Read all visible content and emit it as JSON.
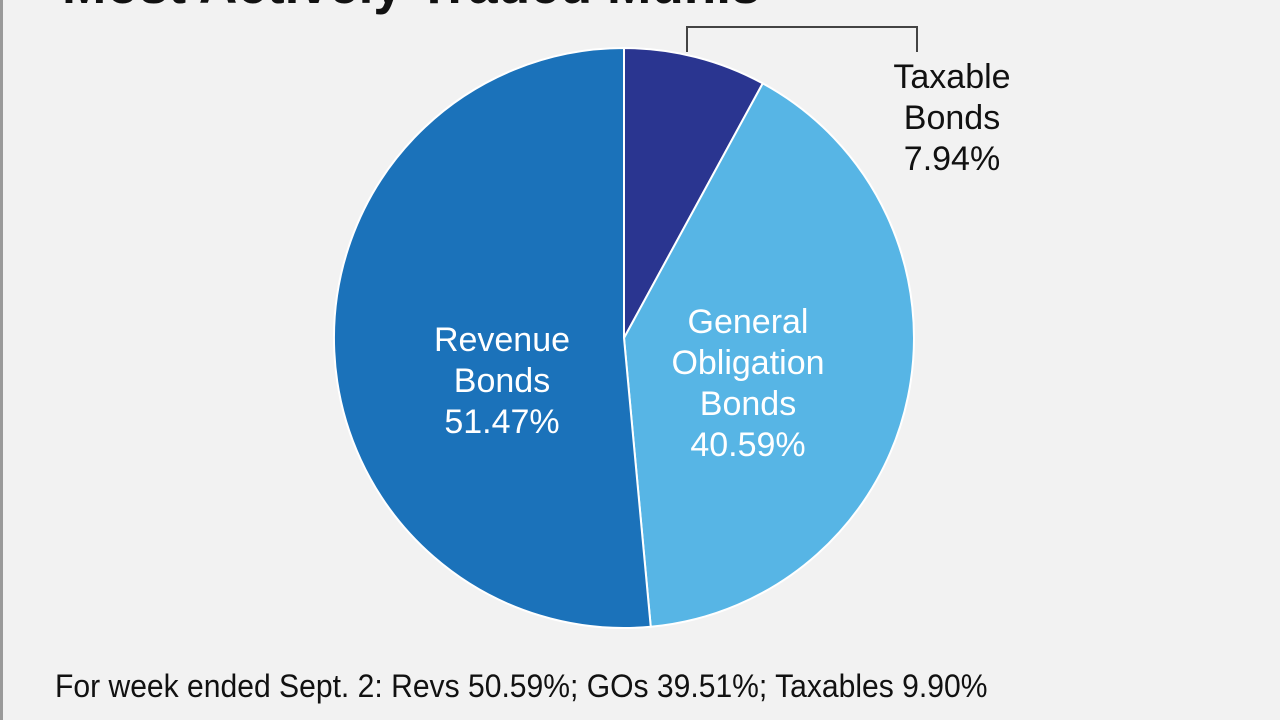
{
  "chart_data": {
    "type": "pie",
    "title": "Most Actively Traded Munis",
    "slices": [
      {
        "name": "Taxable Bonds",
        "label_lines": [
          "Taxable",
          "Bonds",
          "7.94%"
        ],
        "value": 7.94,
        "color": "#2a3590"
      },
      {
        "name": "General Obligation Bonds",
        "label_lines": [
          "General",
          "Obligation",
          "Bonds",
          "40.59%"
        ],
        "value": 40.59,
        "color": "#57b5e5"
      },
      {
        "name": "Revenue Bonds",
        "label_lines": [
          "Revenue",
          "Bonds",
          "51.47%"
        ],
        "value": 51.47,
        "color": "#1b72ba"
      }
    ],
    "footnote": "For week ended Sept. 2: Revs 50.59%; GOs 39.51%; Taxables 9.90%"
  }
}
